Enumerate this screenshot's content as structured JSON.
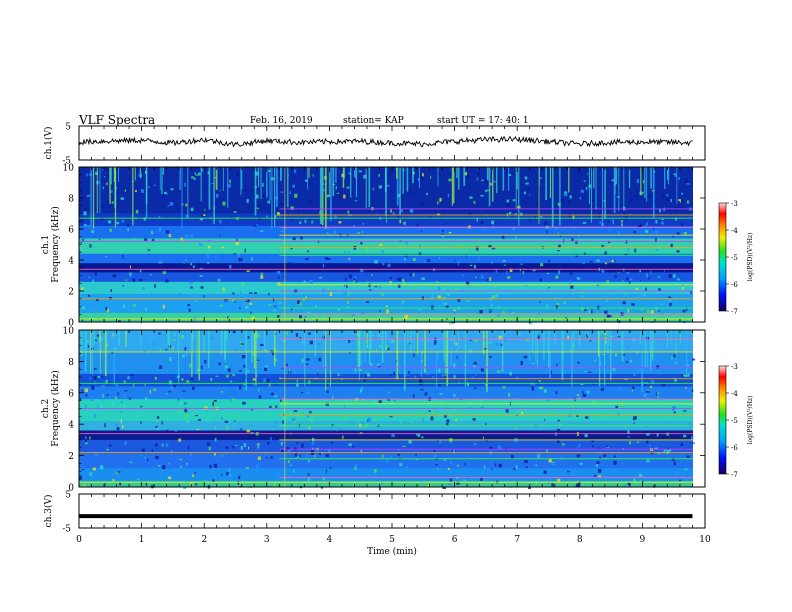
{
  "header": {
    "title": "VLF Spectra",
    "date": "Feb. 16, 2019",
    "station": "station= KAP",
    "start": "start  UT =   17: 40: 1"
  },
  "chart_data": [
    {
      "type": "line",
      "panel": "ch1_waveform",
      "ylabel": "ch.1(V)",
      "yticks": [
        "5",
        "-5"
      ],
      "ylim": [
        -5,
        5
      ],
      "xlim": [
        0,
        10
      ],
      "x": [
        0.0,
        0.5,
        1.0,
        1.5,
        2.0,
        2.5,
        3.0,
        3.5,
        4.0,
        4.5,
        5.0,
        5.5,
        6.0,
        6.5,
        7.0,
        7.5,
        8.0,
        8.5,
        9.0,
        9.5,
        9.8
      ],
      "values": [
        0.3,
        0.6,
        0.8,
        0.0,
        1.0,
        -0.5,
        0.7,
        0.2,
        0.4,
        0.5,
        0.0,
        -0.3,
        0.5,
        1.0,
        1.1,
        0.4,
        -0.3,
        0.2,
        0.3,
        0.2,
        0.0
      ]
    },
    {
      "type": "heatmap",
      "panel": "ch1_spectrogram",
      "ylabel_top": "ch.1",
      "ylabel": "Frequency (kHz)",
      "yticks": [
        "0",
        "2",
        "4",
        "6",
        "8",
        "10"
      ],
      "ylim": [
        0,
        10
      ],
      "xlim": [
        0,
        9.8
      ],
      "colorbar": {
        "label": "log(PSD)(V²/Hz)",
        "ticks": [
          "-3",
          "-4",
          "-5",
          "-6",
          "-7"
        ],
        "range": [
          -7,
          -3
        ]
      }
    },
    {
      "type": "heatmap",
      "panel": "ch2_spectrogram",
      "ylabel_top": "ch.2",
      "ylabel": "Frequency (kHz)",
      "yticks": [
        "0",
        "2",
        "4",
        "6",
        "8",
        "10"
      ],
      "ylim": [
        0,
        10
      ],
      "xlim": [
        0,
        9.8
      ],
      "colorbar": {
        "label": "log(PSD)(V²/Hz)",
        "ticks": [
          "-3",
          "-4",
          "-5",
          "-6",
          "-7"
        ],
        "range": [
          -7,
          -3
        ]
      }
    },
    {
      "type": "line",
      "panel": "ch3_waveform",
      "ylabel": "ch.3(V)",
      "yticks": [
        "5",
        "-5"
      ],
      "ylim": [
        -5,
        5
      ],
      "xlim": [
        0,
        10
      ],
      "x": [
        0,
        9.8
      ],
      "values": [
        -1.5,
        -1.5
      ]
    }
  ],
  "xaxis": {
    "label": "Time (min)",
    "ticks": [
      "0",
      "1",
      "2",
      "3",
      "4",
      "5",
      "6",
      "7",
      "8",
      "9",
      "10"
    ]
  }
}
